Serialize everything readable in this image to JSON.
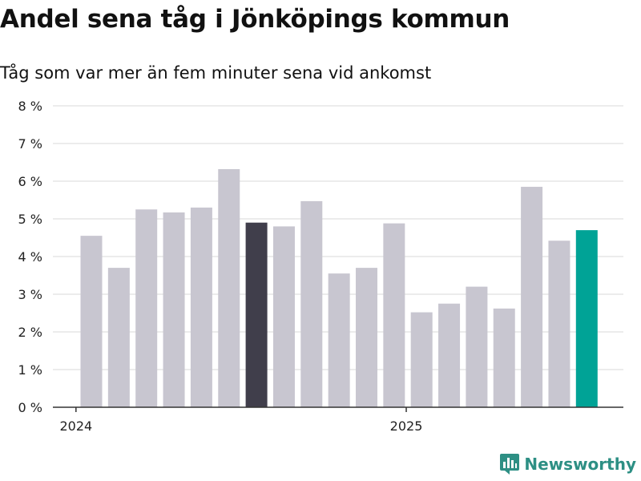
{
  "header": {
    "title": "Andel sena tåg i Jönköpings kommun",
    "subtitle": "Tåg som var mer än fem minuter sena vid ankomst"
  },
  "brand": {
    "name": "Newsworthy",
    "logo_icon": "newsworthy-chart-icon"
  },
  "colors": {
    "bar_default": "#c8c6d0",
    "bar_highlight_dark": "#403e4b",
    "bar_highlight_accent": "#00a396",
    "grid": "#d9d9d9",
    "axis": "#333333",
    "brand": "#2d8f84"
  },
  "chart_data": {
    "type": "bar",
    "ylim": [
      0,
      8
    ],
    "y_ticks": [
      "0 %",
      "1 %",
      "2 %",
      "3 %",
      "4 %",
      "5 %",
      "6 %",
      "7 %",
      "8 %"
    ],
    "x_ticks": [
      {
        "label": "2024",
        "at_month": "2024-01"
      },
      {
        "label": "2025",
        "at_month": "2025-01"
      }
    ],
    "grid": true,
    "categories": [
      "2024-02",
      "2024-03",
      "2024-04",
      "2024-05",
      "2024-06",
      "2024-07",
      "2024-08",
      "2024-09",
      "2024-10",
      "2024-11",
      "2024-12",
      "2025-01",
      "2025-02",
      "2025-03",
      "2025-04",
      "2025-05",
      "2025-06",
      "2025-07",
      "2025-08"
    ],
    "values": [
      4.55,
      3.7,
      5.25,
      5.17,
      5.3,
      6.32,
      4.9,
      4.8,
      5.47,
      3.55,
      3.7,
      4.88,
      2.52,
      2.75,
      3.2,
      2.62,
      5.85,
      4.42,
      4.7
    ],
    "highlight": {
      "2024-08": "dark",
      "2025-08": "accent"
    }
  }
}
